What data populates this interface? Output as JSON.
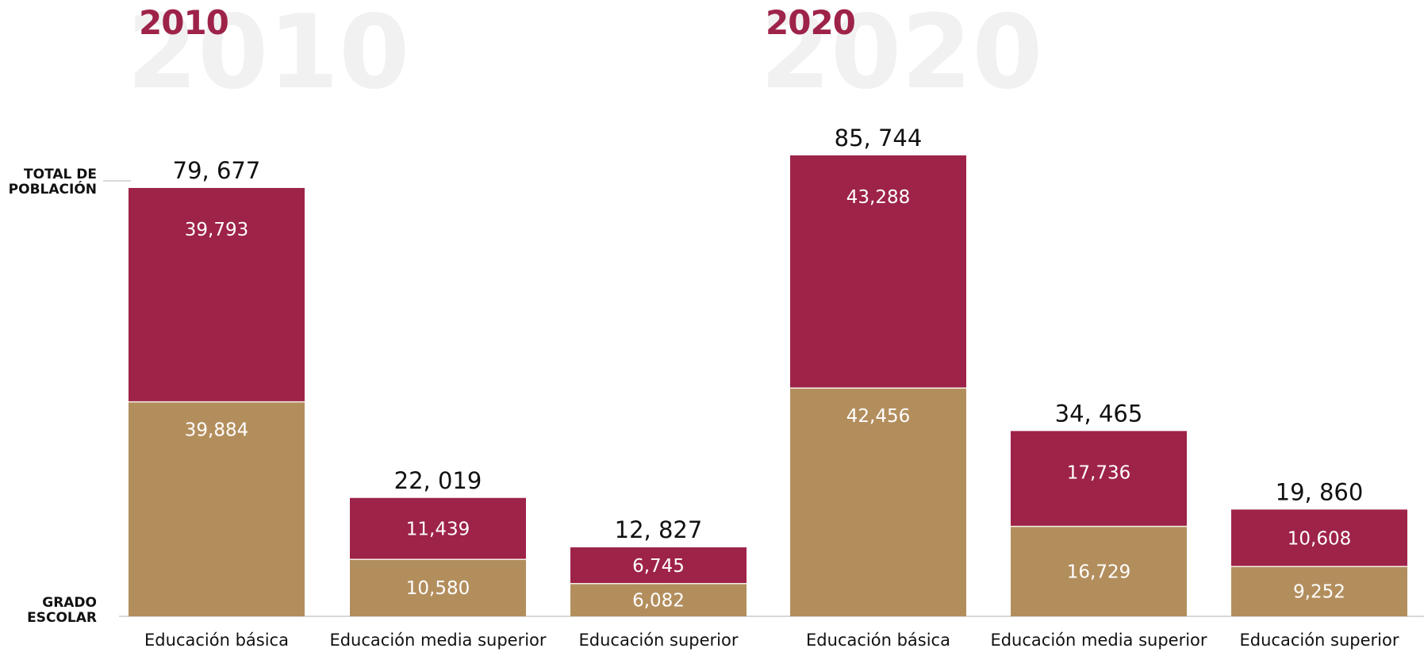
{
  "chart_data": {
    "type": "bar",
    "stacked": true,
    "years": [
      "2010",
      "2020"
    ],
    "side_labels": {
      "top": [
        "TOTAL DE",
        "POBLACIÓN"
      ],
      "bottom": [
        "GRADO",
        "ESCOLAR"
      ]
    },
    "colors": {
      "top_segment": "#9e2349",
      "bottom_segment": "#b38e5d"
    },
    "ylim": [
      0,
      90000
    ],
    "groups": [
      {
        "year": "2010",
        "bars": [
          {
            "category": "Educación básica",
            "total_label": "79, 677",
            "bottom": 39884,
            "bottom_label": "39,884",
            "top": 39793,
            "top_label": "39,793"
          },
          {
            "category": "Educación media superior",
            "total_label": "22, 019",
            "bottom": 10580,
            "bottom_label": "10,580",
            "top": 11439,
            "top_label": "11,439"
          },
          {
            "category": "Educación superior",
            "total_label": "12, 827",
            "bottom": 6082,
            "bottom_label": "6,082",
            "top": 6745,
            "top_label": "6,745"
          }
        ]
      },
      {
        "year": "2020",
        "bars": [
          {
            "category": "Educación básica",
            "total_label": "85, 744",
            "bottom": 42456,
            "bottom_label": "42,456",
            "top": 43288,
            "top_label": "43,288"
          },
          {
            "category": "Educación media superior",
            "total_label": "34, 465",
            "bottom": 16729,
            "bottom_label": "16,729",
            "top": 17736,
            "top_label": "17,736"
          },
          {
            "category": "Educación superior",
            "total_label": "19, 860",
            "bottom": 9252,
            "bottom_label": "9,252",
            "top": 10608,
            "top_label": "10,608"
          }
        ]
      }
    ]
  }
}
